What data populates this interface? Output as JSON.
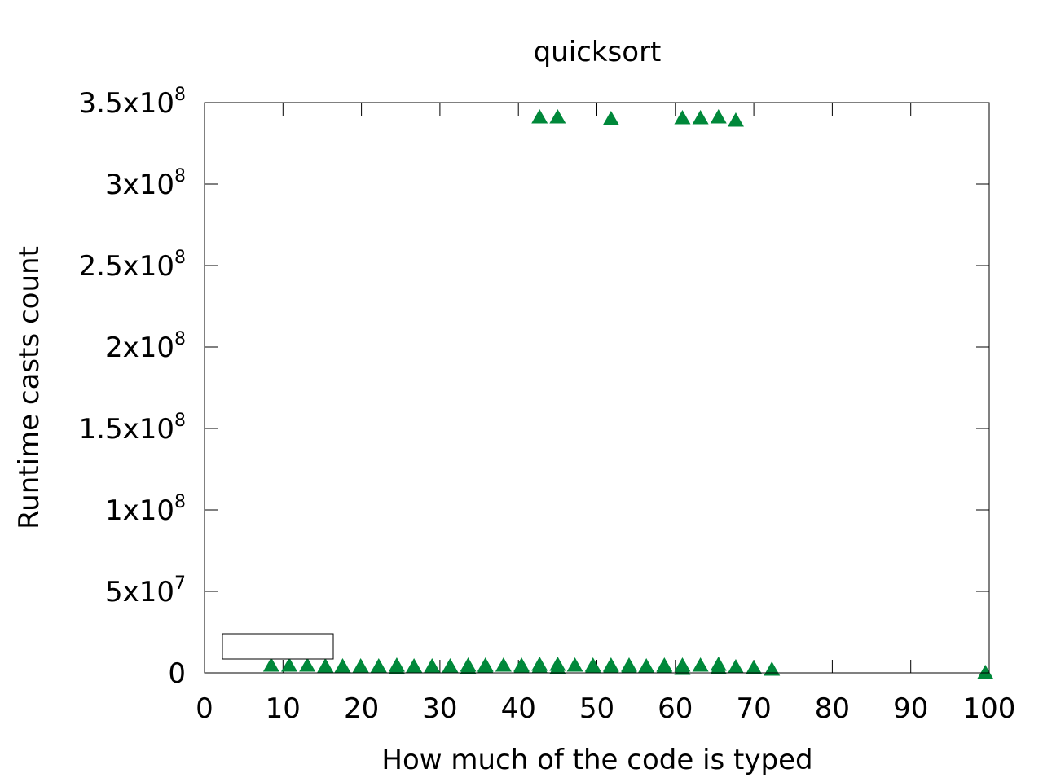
{
  "chart_data": {
    "type": "scatter",
    "title": "quicksort",
    "xlabel": "How much of the code is typed",
    "ylabel": "Runtime casts count",
    "xlim": [
      0,
      100
    ],
    "ylim": [
      0,
      350000000
    ],
    "x_ticks": [
      {
        "value": 0,
        "label": "0"
      },
      {
        "value": 10,
        "label": "10"
      },
      {
        "value": 20,
        "label": "20"
      },
      {
        "value": 30,
        "label": "30"
      },
      {
        "value": 40,
        "label": "40"
      },
      {
        "value": 50,
        "label": "50"
      },
      {
        "value": 60,
        "label": "60"
      },
      {
        "value": 70,
        "label": "70"
      },
      {
        "value": 80,
        "label": "80"
      },
      {
        "value": 90,
        "label": "90"
      },
      {
        "value": 100,
        "label": "100"
      }
    ],
    "y_ticks": [
      {
        "value": 0,
        "label": "0",
        "exp": ""
      },
      {
        "value": 50000000,
        "label": "5x10",
        "exp": "7"
      },
      {
        "value": 100000000,
        "label": "1x10",
        "exp": "8"
      },
      {
        "value": 150000000,
        "label": "1.5x10",
        "exp": "8"
      },
      {
        "value": 200000000,
        "label": "2x10",
        "exp": "8"
      },
      {
        "value": 250000000,
        "label": "2.5x10",
        "exp": "8"
      },
      {
        "value": 300000000,
        "label": "3x10",
        "exp": "8"
      },
      {
        "value": 350000000,
        "label": "3.5x10",
        "exp": "8"
      }
    ],
    "grid": false,
    "legend": "top-left, empty box",
    "marker": "triangle",
    "color": "#00883a",
    "series": [
      {
        "x": [
          8.5,
          10.8,
          13.1,
          15.4,
          15.4,
          17.6,
          19.9,
          19.9,
          22.2,
          24.5,
          24.5,
          26.7,
          29.0,
          29.0,
          31.3,
          33.6,
          33.6,
          35.8,
          35.8,
          38.1,
          40.4,
          40.4,
          42.7,
          42.7,
          45.0,
          45.0,
          47.2,
          49.5,
          49.5,
          51.8,
          51.8,
          54.1,
          54.1,
          56.3,
          58.6,
          58.6,
          60.9,
          60.9,
          63.2,
          65.5,
          65.5,
          67.7,
          70.0,
          72.3,
          99.5,
          42.7,
          45.0,
          51.8,
          60.9,
          63.2,
          65.5,
          67.7
        ],
        "y": [
          4500000,
          4500000,
          4500000,
          4000000,
          4000000,
          4000000,
          4000000,
          3500000,
          4000000,
          4500000,
          3000000,
          4000000,
          4000000,
          3500000,
          4000000,
          4500000,
          3000000,
          4500000,
          3500000,
          4500000,
          4500000,
          3500000,
          5000000,
          3500000,
          5000000,
          3000000,
          4500000,
          4500000,
          3500000,
          4500000,
          3500000,
          4500000,
          3500000,
          4000000,
          4500000,
          3500000,
          4500000,
          2500000,
          4500000,
          5000000,
          3000000,
          3500000,
          3000000,
          2000000,
          0,
          341000000,
          341000000,
          340000000,
          340500000,
          340500000,
          341000000,
          339000000
        ]
      }
    ]
  }
}
